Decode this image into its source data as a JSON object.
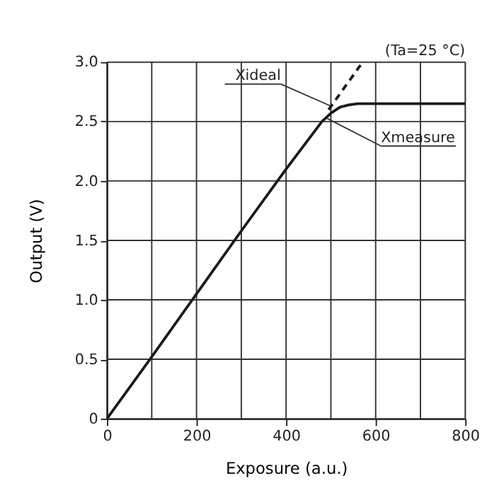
{
  "chart_data": {
    "type": "line",
    "xlabel": "Exposure (a.u.)",
    "ylabel": "Output (V)",
    "x": [
      0,
      100,
      200,
      300,
      400,
      450,
      480,
      500,
      520,
      540,
      560,
      580,
      600,
      700,
      800
    ],
    "series": [
      {
        "color": "#1a1a1a",
        "line_style": "solid",
        "values": [
          0,
          0.52,
          1.05,
          1.58,
          2.1,
          2.35,
          2.5,
          2.57,
          2.62,
          2.64,
          2.65,
          2.65,
          2.65,
          2.65,
          2.65
        ]
      },
      {
        "color": "#1a1a1a",
        "line_style": "dashed",
        "x": [
          495,
          571
        ],
        "values": [
          2.6,
          3.0
        ]
      }
    ],
    "annotations": [
      {
        "text": "Xideal",
        "x": 500,
        "y": 2.63
      },
      {
        "text": "Xmeasure",
        "x": 490,
        "y": 2.53
      },
      "(Ta=25 °C)"
    ],
    "xlim": [
      0,
      800
    ],
    "ylim": [
      0,
      3.0
    ],
    "xticks": [
      0,
      {
        "value": 100,
        "label": null
      },
      200,
      {
        "value": 300,
        "label": null
      },
      400,
      {
        "value": 500,
        "label": null
      },
      600,
      {
        "value": 700,
        "label": null
      },
      800
    ],
    "yticks": [
      0,
      0.5,
      {
        "value": 1,
        "label": "1.0"
      },
      1.5,
      {
        "value": 2,
        "label": "2.0"
      },
      2.5,
      {
        "value": 3,
        "label": "3.0"
      }
    ],
    "grid": true,
    "marker": "none"
  }
}
